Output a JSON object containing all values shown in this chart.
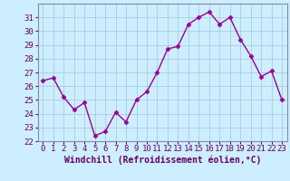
{
  "x": [
    0,
    1,
    2,
    3,
    4,
    5,
    6,
    7,
    8,
    9,
    10,
    11,
    12,
    13,
    14,
    15,
    16,
    17,
    18,
    19,
    20,
    21,
    22,
    23
  ],
  "y": [
    26.4,
    26.6,
    25.2,
    24.3,
    24.8,
    22.4,
    22.7,
    24.1,
    23.4,
    25.0,
    25.6,
    27.0,
    28.7,
    28.9,
    30.5,
    31.0,
    31.4,
    30.5,
    31.0,
    29.4,
    28.2,
    26.7,
    27.1,
    25.0
  ],
  "line_color": "#990099",
  "marker": "D",
  "marker_size": 2.5,
  "bg_color": "#cceeff",
  "grid_color": "#aaccdd",
  "xlabel": "Windchill (Refroidissement éolien,°C)",
  "ylabel": "",
  "ylim": [
    22,
    32
  ],
  "xlim": [
    -0.5,
    23.5
  ],
  "yticks": [
    22,
    23,
    24,
    25,
    26,
    27,
    28,
    29,
    30,
    31
  ],
  "xticks": [
    0,
    1,
    2,
    3,
    4,
    5,
    6,
    7,
    8,
    9,
    10,
    11,
    12,
    13,
    14,
    15,
    16,
    17,
    18,
    19,
    20,
    21,
    22,
    23
  ],
  "xlabel_color": "#660066",
  "tick_color": "#660066",
  "xlabel_fontsize": 7.0,
  "tick_fontsize": 6.5,
  "line_width": 1.0,
  "spine_color": "#8888aa"
}
